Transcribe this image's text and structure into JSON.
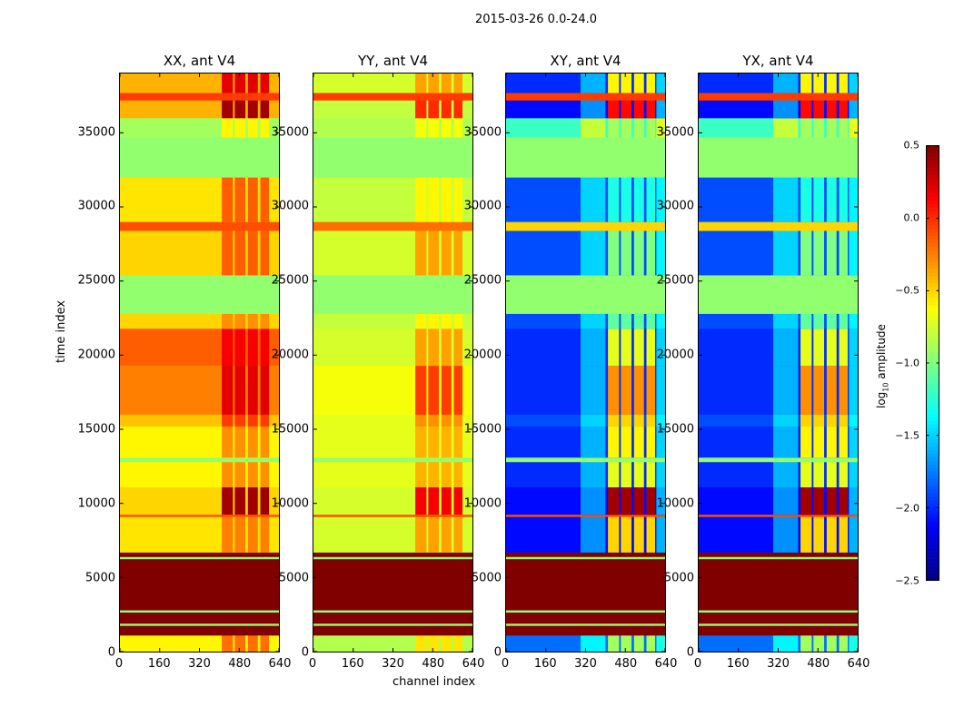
{
  "chart_data": {
    "type": "heatmap",
    "title": "2015-03-26 0.0-24.0",
    "panels": [
      "XX, ant V4",
      "YY, ant V4",
      "XY, ant V4",
      "YX, ant V4"
    ],
    "xlabel": "channel index",
    "ylabel": "time index",
    "xlim": [
      0,
      640
    ],
    "ylim": [
      0,
      39000
    ],
    "xticks": [
      "0",
      "160",
      "320",
      "480",
      "640"
    ],
    "yticks": [
      "0",
      "5000",
      "10000",
      "15000",
      "20000",
      "25000",
      "30000",
      "35000"
    ],
    "ytick_values": [
      0,
      5000,
      10000,
      15000,
      20000,
      25000,
      30000,
      35000
    ],
    "xtick_values": [
      0,
      160,
      320,
      480,
      640
    ],
    "colorbar": {
      "label": "log",
      "label_sub": "10",
      "label_rest": " amplitude",
      "vmin": -2.5,
      "vmax": 0.5,
      "ticks": [
        "0.5",
        "0.0",
        "−0.5",
        "−1.0",
        "−1.5",
        "−2.0",
        "−2.5"
      ],
      "tick_values": [
        0.5,
        0,
        -0.5,
        -1,
        -1.5,
        -2,
        -2.5
      ],
      "colormap": "jet"
    },
    "rfi_channels": [
      [
        410,
        455
      ],
      [
        462,
        505
      ],
      [
        515,
        555
      ],
      [
        565,
        600
      ]
    ],
    "bands": [
      {
        "t": [
          0,
          1100
        ],
        "values": [
          -0.6,
          -0.85,
          -1.8,
          -1.8
        ],
        "rfi": [
          0.4,
          0.3,
          0.9,
          0.9
        ]
      },
      {
        "t": [
          1100,
          1750
        ],
        "values": [
          0.5,
          0.5,
          0.5,
          0.5
        ],
        "rfi": [
          0,
          0,
          0,
          0
        ]
      },
      {
        "t": [
          1750,
          1900
        ],
        "values": [
          -0.95,
          -0.95,
          -0.95,
          -0.95
        ],
        "rfi": [
          0,
          0,
          0,
          0
        ]
      },
      {
        "t": [
          1900,
          2650
        ],
        "values": [
          0.5,
          0.5,
          0.5,
          0.5
        ],
        "rfi": [
          0,
          0,
          0,
          0
        ]
      },
      {
        "t": [
          2650,
          2800
        ],
        "values": [
          -0.95,
          -0.95,
          -0.95,
          -0.95
        ],
        "rfi": [
          0,
          0,
          0,
          0
        ]
      },
      {
        "t": [
          2800,
          6250
        ],
        "values": [
          0.5,
          0.5,
          0.5,
          0.5
        ],
        "rfi": [
          0,
          0,
          0,
          0
        ]
      },
      {
        "t": [
          6250,
          6400
        ],
        "values": [
          -0.95,
          -0.95,
          -0.95,
          -0.95
        ],
        "rfi": [
          0,
          0,
          0,
          0
        ]
      },
      {
        "t": [
          6400,
          6700
        ],
        "values": [
          0.5,
          0.5,
          0.5,
          0.5
        ],
        "rfi": [
          0,
          0,
          0,
          0
        ]
      },
      {
        "t": [
          6700,
          9100
        ],
        "values": [
          -0.55,
          -0.75,
          -2.1,
          -2.1
        ],
        "rfi": [
          0.3,
          0.4,
          1.6,
          1.6
        ]
      },
      {
        "t": [
          9100,
          9250
        ],
        "values": [
          -0.1,
          -0.1,
          -0.1,
          -0.1
        ],
        "rfi": [
          0,
          0,
          0,
          0
        ]
      },
      {
        "t": [
          9250,
          11100
        ],
        "values": [
          -0.5,
          -0.75,
          -2.1,
          -2.1
        ],
        "rfi": [
          0.9,
          0.9,
          2.5,
          2.5
        ]
      },
      {
        "t": [
          11100,
          12800
        ],
        "values": [
          -0.6,
          -0.7,
          -2.0,
          -2.0
        ],
        "rfi": [
          0.3,
          0.3,
          1.3,
          1.3
        ]
      },
      {
        "t": [
          12800,
          13100
        ],
        "values": [
          -0.95,
          -0.95,
          -0.95,
          -0.95
        ],
        "rfi": [
          0,
          0,
          0,
          0
        ]
      },
      {
        "t": [
          13100,
          15200
        ],
        "values": [
          -0.6,
          -0.7,
          -2.0,
          -2.0
        ],
        "rfi": [
          0.3,
          0.3,
          1.4,
          1.4
        ]
      },
      {
        "t": [
          15200,
          16000
        ],
        "values": [
          -0.45,
          -0.7,
          -1.9,
          -1.9
        ],
        "rfi": [
          0.4,
          0.4,
          1.4,
          1.4
        ]
      },
      {
        "t": [
          16000,
          19300
        ],
        "values": [
          -0.25,
          -0.65,
          -2.0,
          -2.0
        ],
        "rfi": [
          0.45,
          0.6,
          1.7,
          1.7
        ]
      },
      {
        "t": [
          19300,
          21800
        ],
        "values": [
          -0.15,
          -0.75,
          -2.0,
          -2.0
        ],
        "rfi": [
          0.3,
          0.4,
          1.3,
          1.3
        ]
      },
      {
        "t": [
          21800,
          22800
        ],
        "values": [
          -0.5,
          -0.8,
          -1.9,
          -1.9
        ],
        "rfi": [
          0.2,
          0.2,
          0.8,
          0.8
        ]
      },
      {
        "t": [
          22800,
          25400
        ],
        "values": [
          -0.95,
          -0.95,
          -0.95,
          -0.95
        ],
        "rfi": [
          0,
          0,
          0,
          0
        ]
      },
      {
        "t": [
          25400,
          28400
        ],
        "values": [
          -0.5,
          -0.75,
          -1.9,
          -1.9
        ],
        "rfi": [
          0.35,
          0.4,
          0.9,
          0.9
        ]
      },
      {
        "t": [
          28400,
          29000
        ],
        "values": [
          -0.1,
          -0.2,
          -0.5,
          -0.5
        ],
        "rfi": [
          0,
          0,
          0,
          0
        ]
      },
      {
        "t": [
          29000,
          32000
        ],
        "values": [
          -0.55,
          -0.8,
          -1.9,
          -1.9
        ],
        "rfi": [
          0.4,
          0.2,
          0.6,
          0.6
        ]
      },
      {
        "t": [
          32000,
          34700
        ],
        "values": [
          -0.95,
          -0.95,
          -0.95,
          -0.95
        ],
        "rfi": [
          0,
          0,
          0,
          0
        ]
      },
      {
        "t": [
          34700,
          36000
        ],
        "values": [
          -0.9,
          -0.85,
          -1.2,
          -1.2
        ],
        "rfi": [
          0.3,
          0.2,
          0.3,
          0.3
        ]
      },
      {
        "t": [
          36000,
          37200
        ],
        "values": [
          -0.4,
          -0.8,
          -2.1,
          -2.1
        ],
        "rfi": [
          0.8,
          0.8,
          2.2,
          2.2
        ]
      },
      {
        "t": [
          37200,
          37700
        ],
        "values": [
          -0.05,
          -0.05,
          -0.05,
          -0.05
        ],
        "rfi": [
          0,
          0,
          0,
          0
        ]
      },
      {
        "t": [
          37700,
          39000
        ],
        "values": [
          -0.4,
          -0.75,
          -2.0,
          -2.0
        ],
        "rfi": [
          0.6,
          0.4,
          1.4,
          1.4
        ]
      }
    ]
  }
}
